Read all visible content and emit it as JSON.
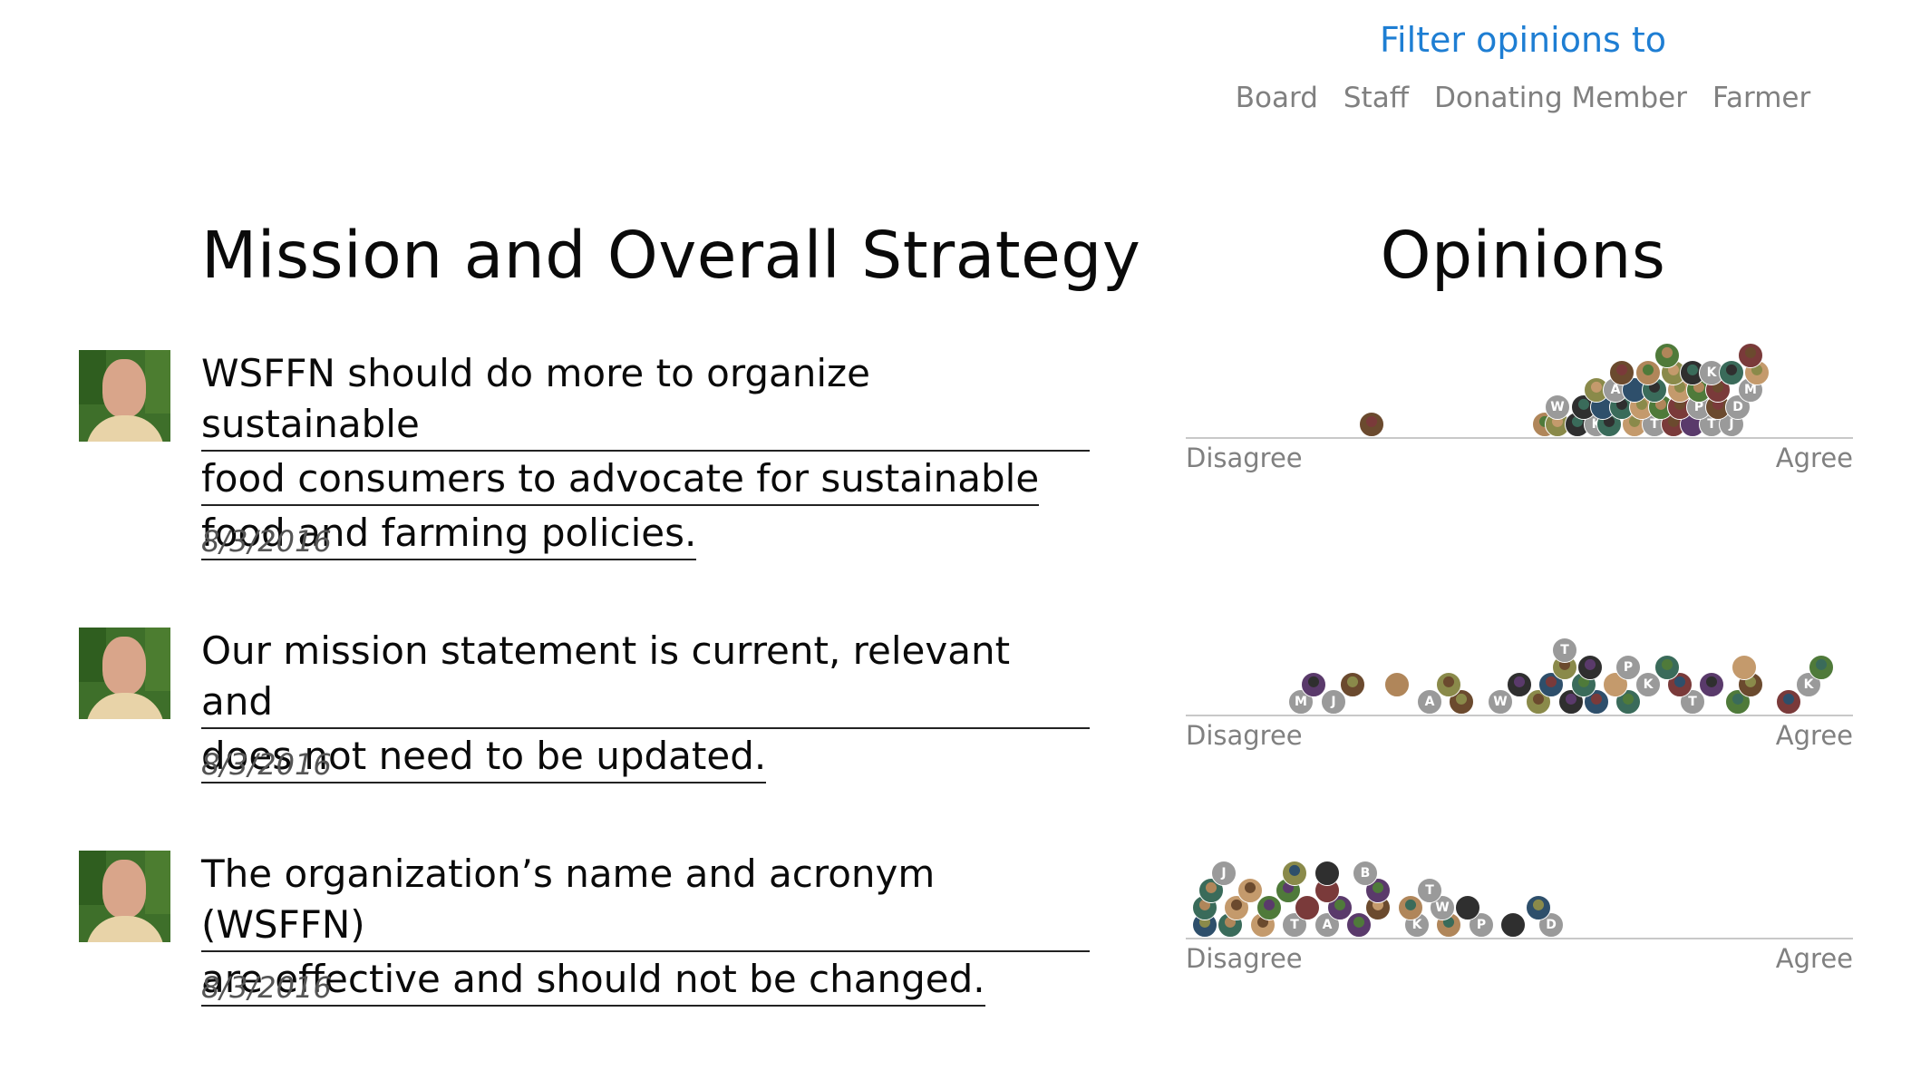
{
  "filter": {
    "title": "Filter opinions to",
    "options": [
      "Board",
      "Staff",
      "Donating Member",
      "Farmer"
    ]
  },
  "headings": {
    "points": "Mission and Overall Strategy",
    "opinions": "Opinions"
  },
  "points": [
    {
      "lines": [
        "WSFFN should do more to organize sustainable",
        "food consumers to advocate for sustainable",
        "food and farming policies."
      ],
      "date": "8/3/2016",
      "scale": {
        "left": "Disagree",
        "right": "Agree"
      },
      "opinions": [
        {
          "v": 0.27,
          "row": 0,
          "label": ""
        },
        {
          "v": 0.54,
          "row": 0,
          "label": ""
        },
        {
          "v": 0.56,
          "row": 0,
          "label": ""
        },
        {
          "v": 0.59,
          "row": 0,
          "label": ""
        },
        {
          "v": 0.62,
          "row": 0,
          "label": "K"
        },
        {
          "v": 0.64,
          "row": 0,
          "label": ""
        },
        {
          "v": 0.68,
          "row": 0,
          "label": ""
        },
        {
          "v": 0.71,
          "row": 0,
          "label": "T"
        },
        {
          "v": 0.74,
          "row": 0,
          "label": ""
        },
        {
          "v": 0.77,
          "row": 0,
          "label": ""
        },
        {
          "v": 0.8,
          "row": 0,
          "label": "T"
        },
        {
          "v": 0.83,
          "row": 0,
          "label": "J"
        },
        {
          "v": 0.56,
          "row": 1,
          "label": "W"
        },
        {
          "v": 0.6,
          "row": 1,
          "label": ""
        },
        {
          "v": 0.63,
          "row": 1,
          "label": ""
        },
        {
          "v": 0.66,
          "row": 1,
          "label": ""
        },
        {
          "v": 0.69,
          "row": 1,
          "label": ""
        },
        {
          "v": 0.72,
          "row": 1,
          "label": ""
        },
        {
          "v": 0.75,
          "row": 1,
          "label": ""
        },
        {
          "v": 0.78,
          "row": 1,
          "label": "P"
        },
        {
          "v": 0.81,
          "row": 1,
          "label": ""
        },
        {
          "v": 0.84,
          "row": 1,
          "label": "D"
        },
        {
          "v": 0.62,
          "row": 2,
          "label": ""
        },
        {
          "v": 0.65,
          "row": 2,
          "label": "A"
        },
        {
          "v": 0.68,
          "row": 2,
          "label": ""
        },
        {
          "v": 0.71,
          "row": 2,
          "label": ""
        },
        {
          "v": 0.75,
          "row": 2,
          "label": ""
        },
        {
          "v": 0.78,
          "row": 2,
          "label": ""
        },
        {
          "v": 0.81,
          "row": 2,
          "label": ""
        },
        {
          "v": 0.86,
          "row": 2,
          "label": "M"
        },
        {
          "v": 0.66,
          "row": 3,
          "label": ""
        },
        {
          "v": 0.7,
          "row": 3,
          "label": ""
        },
        {
          "v": 0.74,
          "row": 3,
          "label": ""
        },
        {
          "v": 0.77,
          "row": 3,
          "label": ""
        },
        {
          "v": 0.8,
          "row": 3,
          "label": "K"
        },
        {
          "v": 0.83,
          "row": 3,
          "label": ""
        },
        {
          "v": 0.87,
          "row": 3,
          "label": ""
        },
        {
          "v": 0.73,
          "row": 4,
          "label": ""
        },
        {
          "v": 0.86,
          "row": 4,
          "label": ""
        }
      ]
    },
    {
      "lines": [
        "Our mission statement is current, relevant and",
        "does not need to be updated."
      ],
      "date": "8/3/2016",
      "scale": {
        "left": "Disagree",
        "right": "Agree"
      },
      "opinions": [
        {
          "v": 0.16,
          "row": 0,
          "label": "M"
        },
        {
          "v": 0.21,
          "row": 0,
          "label": "J"
        },
        {
          "v": 0.36,
          "row": 0,
          "label": "A"
        },
        {
          "v": 0.41,
          "row": 0,
          "label": ""
        },
        {
          "v": 0.47,
          "row": 0,
          "label": "W"
        },
        {
          "v": 0.53,
          "row": 0,
          "label": ""
        },
        {
          "v": 0.58,
          "row": 0,
          "label": ""
        },
        {
          "v": 0.62,
          "row": 0,
          "label": ""
        },
        {
          "v": 0.67,
          "row": 0,
          "label": ""
        },
        {
          "v": 0.77,
          "row": 0,
          "label": "T"
        },
        {
          "v": 0.84,
          "row": 0,
          "label": ""
        },
        {
          "v": 0.92,
          "row": 0,
          "label": ""
        },
        {
          "v": 0.18,
          "row": 1,
          "label": ""
        },
        {
          "v": 0.24,
          "row": 1,
          "label": ""
        },
        {
          "v": 0.31,
          "row": 1,
          "label": ""
        },
        {
          "v": 0.39,
          "row": 1,
          "label": ""
        },
        {
          "v": 0.5,
          "row": 1,
          "label": ""
        },
        {
          "v": 0.55,
          "row": 1,
          "label": ""
        },
        {
          "v": 0.6,
          "row": 1,
          "label": ""
        },
        {
          "v": 0.65,
          "row": 1,
          "label": ""
        },
        {
          "v": 0.7,
          "row": 1,
          "label": "K"
        },
        {
          "v": 0.75,
          "row": 1,
          "label": ""
        },
        {
          "v": 0.8,
          "row": 1,
          "label": ""
        },
        {
          "v": 0.86,
          "row": 1,
          "label": ""
        },
        {
          "v": 0.95,
          "row": 1,
          "label": "K"
        },
        {
          "v": 0.57,
          "row": 2,
          "label": ""
        },
        {
          "v": 0.61,
          "row": 2,
          "label": ""
        },
        {
          "v": 0.67,
          "row": 2,
          "label": "P"
        },
        {
          "v": 0.73,
          "row": 2,
          "label": ""
        },
        {
          "v": 0.85,
          "row": 2,
          "label": ""
        },
        {
          "v": 0.97,
          "row": 2,
          "label": ""
        },
        {
          "v": 0.57,
          "row": 3,
          "label": "T"
        }
      ]
    },
    {
      "lines": [
        "The organization’s name and acronym (WSFFN)",
        "are effective and should not be changed."
      ],
      "date": "8/3/2016",
      "scale": {
        "left": "Disagree",
        "right": "Agree"
      },
      "opinions": [
        {
          "v": 0.01,
          "row": 0,
          "label": ""
        },
        {
          "v": 0.05,
          "row": 0,
          "label": ""
        },
        {
          "v": 0.1,
          "row": 0,
          "label": ""
        },
        {
          "v": 0.15,
          "row": 0,
          "label": "T"
        },
        {
          "v": 0.2,
          "row": 0,
          "label": "A"
        },
        {
          "v": 0.25,
          "row": 0,
          "label": ""
        },
        {
          "v": 0.34,
          "row": 0,
          "label": "K"
        },
        {
          "v": 0.39,
          "row": 0,
          "label": ""
        },
        {
          "v": 0.44,
          "row": 0,
          "label": "P"
        },
        {
          "v": 0.49,
          "row": 0,
          "label": ""
        },
        {
          "v": 0.55,
          "row": 0,
          "label": "D"
        },
        {
          "v": 0.01,
          "row": 1,
          "label": ""
        },
        {
          "v": 0.06,
          "row": 1,
          "label": ""
        },
        {
          "v": 0.11,
          "row": 1,
          "label": ""
        },
        {
          "v": 0.17,
          "row": 1,
          "label": ""
        },
        {
          "v": 0.22,
          "row": 1,
          "label": ""
        },
        {
          "v": 0.28,
          "row": 1,
          "label": ""
        },
        {
          "v": 0.33,
          "row": 1,
          "label": ""
        },
        {
          "v": 0.38,
          "row": 1,
          "label": "W"
        },
        {
          "v": 0.42,
          "row": 1,
          "label": ""
        },
        {
          "v": 0.53,
          "row": 1,
          "label": ""
        },
        {
          "v": 0.02,
          "row": 2,
          "label": ""
        },
        {
          "v": 0.08,
          "row": 2,
          "label": ""
        },
        {
          "v": 0.14,
          "row": 2,
          "label": ""
        },
        {
          "v": 0.2,
          "row": 2,
          "label": ""
        },
        {
          "v": 0.28,
          "row": 2,
          "label": ""
        },
        {
          "v": 0.36,
          "row": 2,
          "label": "T"
        },
        {
          "v": 0.04,
          "row": 3,
          "label": "J"
        },
        {
          "v": 0.15,
          "row": 3,
          "label": ""
        },
        {
          "v": 0.2,
          "row": 3,
          "label": ""
        },
        {
          "v": 0.26,
          "row": 3,
          "label": "B"
        }
      ]
    }
  ],
  "colors": {
    "accent": "#1e7ed3",
    "muted": "#808080",
    "initial_badge": "#9a9a9a",
    "avatar_palette": [
      "#6b4a2e",
      "#4f7a3a",
      "#2e4f6b",
      "#b0865a",
      "#7a3a3a",
      "#3a6b5a",
      "#8a8a4a",
      "#5a3a6b",
      "#c49a6c",
      "#2f2f2f"
    ]
  }
}
